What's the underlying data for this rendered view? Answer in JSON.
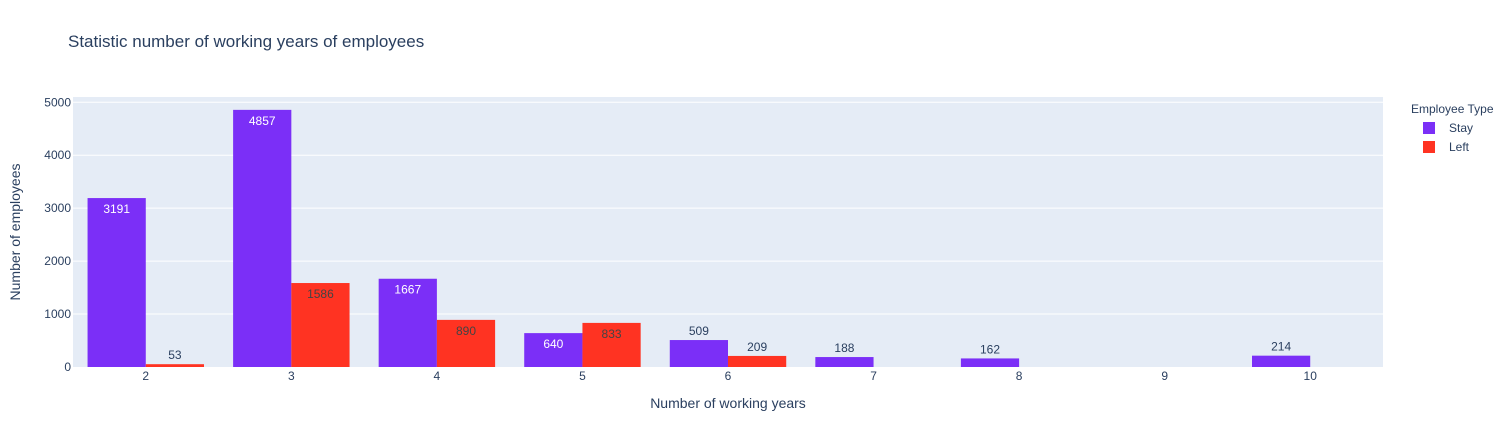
{
  "chart_data": {
    "type": "bar",
    "title": "Statistic number of working years of employees",
    "xlabel": "Number of working years",
    "ylabel": "Number of employees",
    "categories": [
      2,
      3,
      4,
      5,
      6,
      7,
      8,
      9,
      10
    ],
    "ylim": [
      0,
      5100
    ],
    "yticks": [
      0,
      1000,
      2000,
      3000,
      4000,
      5000
    ],
    "grid": true,
    "legend": {
      "title": "Employee Type",
      "position": "top-right"
    },
    "series": [
      {
        "name": "Stay",
        "color": "#7b2ff7",
        "values": [
          3191,
          4857,
          1667,
          640,
          509,
          188,
          162,
          null,
          214
        ]
      },
      {
        "name": "Left",
        "color": "#ff3322",
        "values": [
          53,
          1586,
          890,
          833,
          209,
          null,
          null,
          null,
          null
        ]
      }
    ]
  }
}
